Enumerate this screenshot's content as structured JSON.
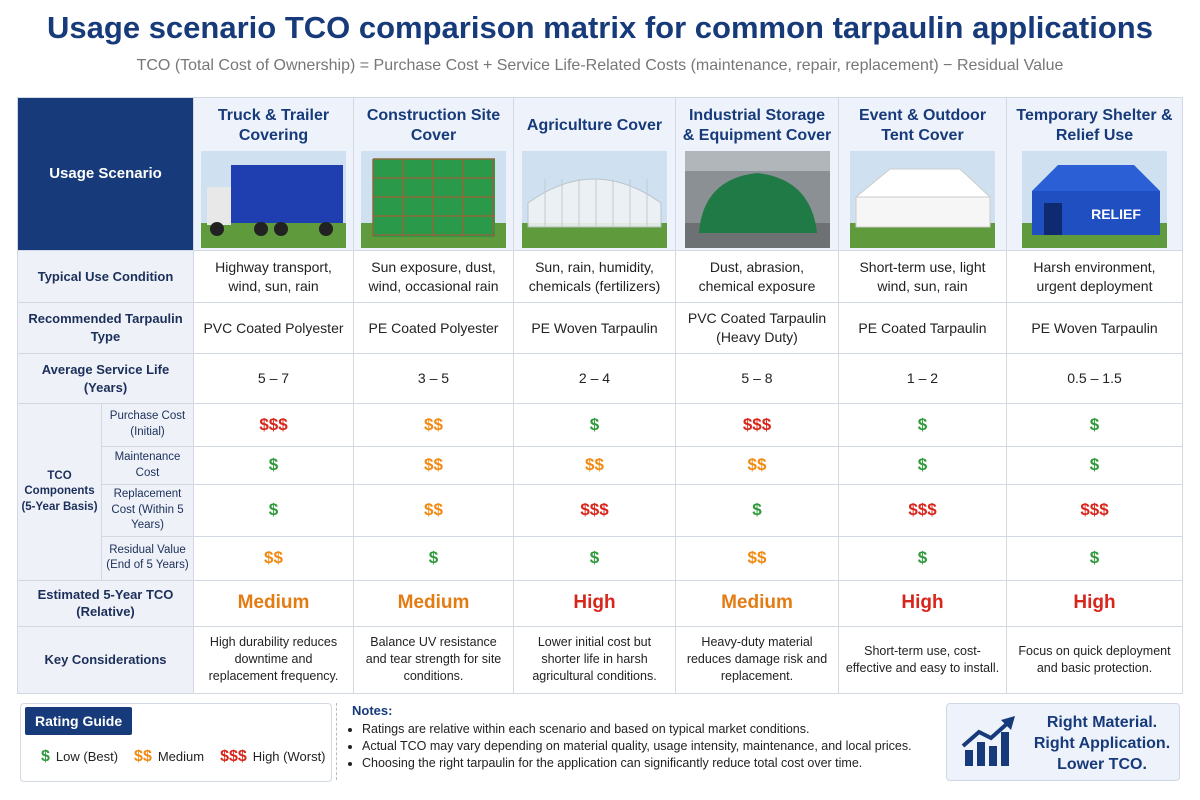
{
  "header": {
    "title": "Usage scenario TCO comparison matrix for common tarpaulin applications",
    "subtitle": "TCO (Total Cost of Ownership) = Purchase Cost + Service Life-Related Costs (maintenance, repair, replacement) − Residual Value"
  },
  "table": {
    "corner_label": "Usage Scenario",
    "scenarios": [
      {
        "name": "Truck & Trailer Covering"
      },
      {
        "name": "Construction Site Cover"
      },
      {
        "name": "Agriculture Cover"
      },
      {
        "name": "Industrial Storage & Equipment Cover"
      },
      {
        "name": "Event & Outdoor Tent Cover"
      },
      {
        "name": "Temporary Shelter & Relief Use",
        "image_label": "RELIEF"
      }
    ],
    "typical_use": {
      "label": "Typical Use Condition",
      "values": [
        "Highway transport, wind, sun, rain",
        "Sun exposure, dust, wind, occasional rain",
        "Sun, rain, humidity, chemicals (fertilizers)",
        "Dust, abrasion, chemical exposure",
        "Short-term use, light wind, sun, rain",
        "Harsh environment, urgent deployment"
      ]
    },
    "recommended_type": {
      "label": "Recommended Tarpaulin Type",
      "values": [
        "PVC Coated Polyester",
        "PE Coated Polyester",
        "PE Woven Tarpaulin",
        "PVC Coated Tarpaulin (Heavy Duty)",
        "PE Coated Tarpaulin",
        "PE Woven Tarpaulin"
      ]
    },
    "service_life": {
      "label": "Average Service Life (Years)",
      "values": [
        "5 – 7",
        "3 – 5",
        "2 – 4",
        "5 – 8",
        "1 – 2",
        "0.5 – 1.5"
      ]
    },
    "tco_components": {
      "label": "TCO Components (5-Year Basis)",
      "items": [
        {
          "label": "Purchase Cost (Initial)",
          "values": [
            "$$$",
            "$$",
            "$",
            "$$$",
            "$",
            "$"
          ]
        },
        {
          "label": "Maintenance Cost",
          "values": [
            "$",
            "$$",
            "$$",
            "$$",
            "$",
            "$"
          ]
        },
        {
          "label": "Replacement Cost (Within 5 Years)",
          "values": [
            "$",
            "$$",
            "$$$",
            "$",
            "$$$",
            "$$$"
          ]
        },
        {
          "label": "Residual Value (End of 5 Years)",
          "values": [
            "$$",
            "$",
            "$",
            "$$",
            "$",
            "$"
          ]
        }
      ]
    },
    "estimated_tco": {
      "label": "Estimated 5-Year TCO (Relative)",
      "values": [
        {
          "text": "Medium",
          "color": "#e47c14"
        },
        {
          "text": "Medium",
          "color": "#e47c14"
        },
        {
          "text": "High",
          "color": "#d9261c"
        },
        {
          "text": "Medium",
          "color": "#e47c14"
        },
        {
          "text": "High",
          "color": "#d9261c"
        },
        {
          "text": "High",
          "color": "#d9261c"
        }
      ]
    },
    "key_considerations": {
      "label": "Key Considerations",
      "values": [
        "High durability reduces downtime and replacement frequency.",
        "Balance UV resistance and tear strength for site conditions.",
        "Lower initial cost but shorter life in harsh agricultural conditions.",
        "Heavy-duty material reduces damage risk and replacement.",
        "Short-term use, cost-effective and easy to install.",
        "Focus on quick deployment and basic protection."
      ]
    }
  },
  "rating_guide": {
    "title": "Rating Guide",
    "items": [
      {
        "symbol": "$",
        "label": "Low (Best)",
        "color": "#2e9a3a"
      },
      {
        "symbol": "$$",
        "label": "Medium",
        "color": "#f08a12"
      },
      {
        "symbol": "$$$",
        "label": "High (Worst)",
        "color": "#d9261c"
      }
    ]
  },
  "notes": {
    "title": "Notes:",
    "items": [
      "Ratings are relative within each scenario and based on typical market conditions.",
      "Actual TCO may vary depending on material quality, usage intensity, maintenance, and local prices.",
      "Choosing the right tarpaulin for the application can significantly reduce total cost over time."
    ]
  },
  "tagline": {
    "lines": [
      "Right Material.",
      "Right Application.",
      "Lower TCO."
    ]
  }
}
